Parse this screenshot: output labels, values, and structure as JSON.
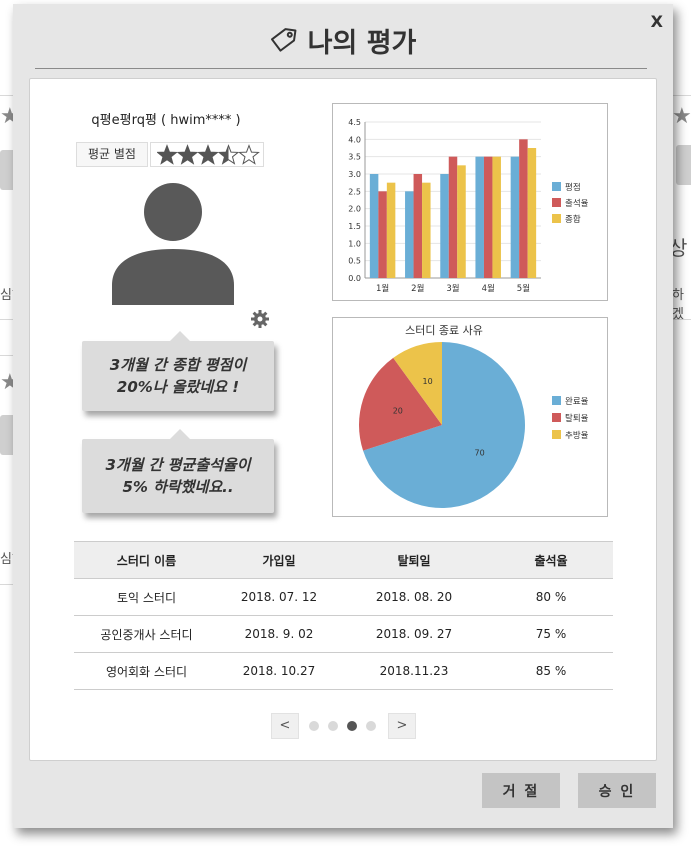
{
  "background": {
    "left_text_1": "심하",
    "left_text_2": "심하",
    "right_big": "상",
    "right_text": "하겠"
  },
  "modal": {
    "title": "나의 평가",
    "close_label": "X"
  },
  "user": {
    "name": "q평e평rq평 ( hwim**** )",
    "rating_label": "평균 별점",
    "rating": 3.5,
    "rating_max": 5
  },
  "bubbles": [
    {
      "line1": "3개월 간 종합 평점이",
      "line2": "20%나 올랐네요 !"
    },
    {
      "line1": "3개월 간  평균출석율이",
      "line2": "5% 하락했네요.."
    }
  ],
  "chart_data": [
    {
      "type": "bar",
      "categories": [
        "1월",
        "2월",
        "3월",
        "4월",
        "5월"
      ],
      "series": [
        {
          "name": "평점",
          "color": "#6aaed6",
          "values": [
            3.0,
            2.5,
            3.0,
            3.5,
            3.5
          ]
        },
        {
          "name": "출석율",
          "color": "#cf5a5a",
          "values": [
            2.5,
            3.0,
            3.5,
            3.5,
            4.0
          ]
        },
        {
          "name": "종합",
          "color": "#ecc34a",
          "values": [
            2.75,
            2.75,
            3.25,
            3.5,
            3.75
          ]
        }
      ],
      "ylim": [
        0,
        4.5
      ],
      "yticks": [
        "0.0",
        "0.5",
        "1.0",
        "1.5",
        "2.0",
        "2.5",
        "3.0",
        "3.5",
        "4.0",
        "4.5"
      ],
      "grid": true,
      "legend_position": "right"
    },
    {
      "type": "pie",
      "title": "스터디 종료 사유",
      "slices": [
        {
          "name": "완료율",
          "value": 70,
          "color": "#6aaed6"
        },
        {
          "name": "탈퇴율",
          "value": 20,
          "color": "#cf5a5a"
        },
        {
          "name": "추방율",
          "value": 10,
          "color": "#ecc34a"
        }
      ],
      "legend_position": "right"
    }
  ],
  "table": {
    "headers": [
      "스터디 이름",
      "가입일",
      "탈퇴일",
      "출석율"
    ],
    "rows": [
      [
        "토익 스터디",
        "2018. 07. 12",
        "2018. 08. 20",
        "80 %"
      ],
      [
        "공인중개사 스터디",
        "2018. 9. 02",
        "2018. 09. 27",
        "75 %"
      ],
      [
        "영어회화 스터디",
        "2018. 10.27",
        "2018.11.23",
        "85 %"
      ]
    ]
  },
  "pagination": {
    "prev": "<",
    "next": ">",
    "pages": 4,
    "current_page": 3
  },
  "buttons": {
    "reject": "거 절",
    "approve": "승 인"
  }
}
